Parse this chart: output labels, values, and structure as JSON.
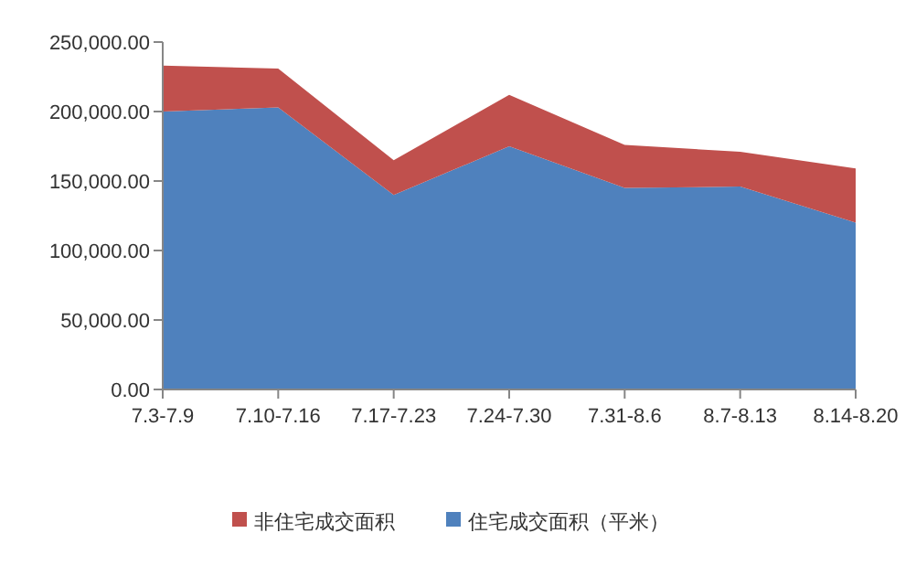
{
  "chart_data": {
    "type": "area",
    "stacked": true,
    "categories": [
      "7.3-7.9",
      "7.10-7.16",
      "7.17-7.23",
      "7.24-7.30",
      "7.31-8.6",
      "8.7-8.13",
      "8.14-8.20"
    ],
    "series": [
      {
        "name": "住宅成交面积（平米）",
        "color": "#4f81bd",
        "values": [
          200000,
          203000,
          140000,
          175000,
          145000,
          146000,
          120000
        ]
      },
      {
        "name": "非住宅成交面积",
        "color": "#c0504d",
        "values": [
          33000,
          28000,
          25000,
          37000,
          31000,
          25000,
          39000
        ]
      }
    ],
    "ylim": [
      0,
      250000
    ],
    "yticks": [
      {
        "value": 0,
        "label": "0.00"
      },
      {
        "value": 50000,
        "label": "50,000.00"
      },
      {
        "value": 100000,
        "label": "100,000.00"
      },
      {
        "value": 150000,
        "label": "150,000.00"
      },
      {
        "value": 200000,
        "label": "200,000.00"
      },
      {
        "value": 250000,
        "label": "250,000.00"
      }
    ],
    "grid": false,
    "legend": "bottom"
  }
}
